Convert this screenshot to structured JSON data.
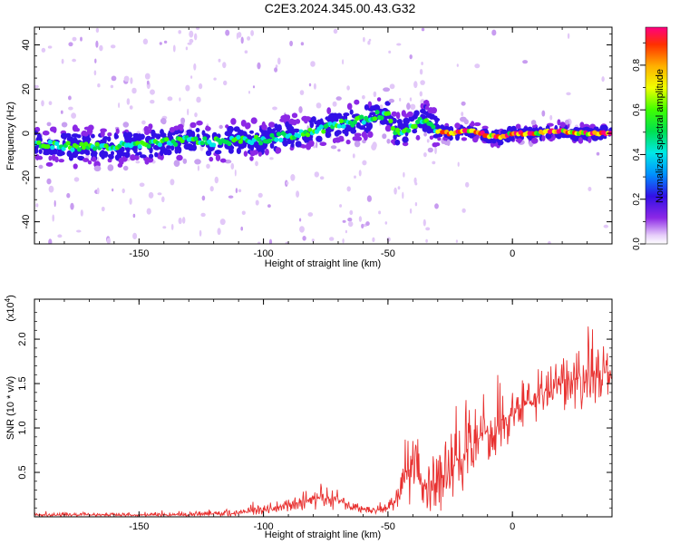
{
  "title": "C2E3.2024.345.00.43.G32",
  "chart_data": [
    {
      "type": "heatmap",
      "xlabel": "Height of straight line (km)",
      "ylabel": "Frequency (Hz)",
      "xlim": [
        -192,
        40
      ],
      "ylim": [
        -50,
        48
      ],
      "xticks": [
        -150,
        -100,
        -50,
        0
      ],
      "yticks": [
        -40,
        -20,
        0,
        20,
        40
      ],
      "ridge": {
        "x": [
          -192,
          -175,
          -160,
          -145,
          -130,
          -120,
          -110,
          -100,
          -90,
          -80,
          -70,
          -60,
          -55,
          -50,
          -48,
          -45,
          -40,
          -35,
          -30,
          -25,
          -20,
          -15,
          -10,
          -5,
          0,
          5,
          10,
          15,
          20,
          25,
          30,
          35,
          40
        ],
        "y": [
          -5,
          -6,
          -6,
          -5,
          -3,
          -4,
          -3,
          -3,
          -1,
          1,
          4,
          6,
          8,
          9,
          2,
          0,
          4,
          7,
          1,
          0,
          1,
          1,
          -1,
          -2,
          0,
          0,
          0,
          1,
          1,
          0,
          0,
          0,
          0
        ]
      },
      "colorbar": {
        "label": "Normalized spectral amplitude",
        "range": [
          0.0,
          0.97
        ],
        "ticks": [
          "0.0",
          "0.2",
          "0.4",
          "0.6",
          "0.8"
        ]
      }
    },
    {
      "type": "line",
      "xlabel": "Height of straight line (km)",
      "ylabel": "SNR (10 * v/v)",
      "scale_note": "(x10",
      "scale_exp": "4",
      "scale_close": ")",
      "xlim": [
        -192,
        40
      ],
      "ylim": [
        0,
        2.45
      ],
      "xticks": [
        -150,
        -100,
        -50,
        0
      ],
      "yticks": [
        "0.5",
        "1.0",
        "1.5",
        "2.0"
      ],
      "color": "#e8302f",
      "envelope": {
        "x": [
          -192,
          -160,
          -130,
          -110,
          -100,
          -90,
          -80,
          -72,
          -65,
          -60,
          -55,
          -50,
          -45,
          -42,
          -40,
          -35,
          -30,
          -25,
          -20,
          -15,
          -10,
          -5,
          0,
          5,
          10,
          15,
          20,
          25,
          30,
          35,
          40
        ],
        "base": [
          0.02,
          0.02,
          0.02,
          0.04,
          0.08,
          0.13,
          0.2,
          0.22,
          0.12,
          0.08,
          0.07,
          0.1,
          0.25,
          0.45,
          0.5,
          0.35,
          0.4,
          0.55,
          0.7,
          0.85,
          0.95,
          1.05,
          1.15,
          1.25,
          1.35,
          1.45,
          1.5,
          1.55,
          1.6,
          1.6,
          1.65
        ],
        "amp": [
          0.04,
          0.04,
          0.05,
          0.06,
          0.1,
          0.15,
          0.2,
          0.25,
          0.1,
          0.06,
          0.06,
          0.1,
          0.35,
          0.55,
          0.6,
          0.45,
          0.65,
          0.7,
          0.75,
          0.5,
          0.55,
          0.6,
          0.5,
          0.55,
          0.5,
          0.45,
          0.55,
          0.6,
          0.75,
          0.6,
          0.4
        ]
      }
    }
  ]
}
